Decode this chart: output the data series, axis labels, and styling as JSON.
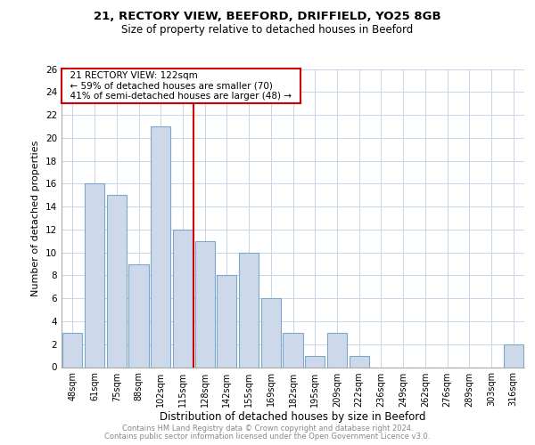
{
  "title": "21, RECTORY VIEW, BEEFORD, DRIFFIELD, YO25 8GB",
  "subtitle": "Size of property relative to detached houses in Beeford",
  "xlabel": "Distribution of detached houses by size in Beeford",
  "ylabel": "Number of detached properties",
  "categories": [
    "48sqm",
    "61sqm",
    "75sqm",
    "88sqm",
    "102sqm",
    "115sqm",
    "128sqm",
    "142sqm",
    "155sqm",
    "169sqm",
    "182sqm",
    "195sqm",
    "209sqm",
    "222sqm",
    "236sqm",
    "249sqm",
    "262sqm",
    "276sqm",
    "289sqm",
    "303sqm",
    "316sqm"
  ],
  "values": [
    3,
    16,
    15,
    9,
    21,
    12,
    11,
    8,
    10,
    6,
    3,
    1,
    3,
    1,
    0,
    0,
    0,
    0,
    0,
    0,
    2
  ],
  "bar_color": "#cdd9ea",
  "bar_edge_color": "#7ba7cc",
  "vline_x_index": 5.5,
  "vline_color": "#cc0000",
  "ylim": [
    0,
    26
  ],
  "yticks": [
    0,
    2,
    4,
    6,
    8,
    10,
    12,
    14,
    16,
    18,
    20,
    22,
    24,
    26
  ],
  "annotation_title": "21 RECTORY VIEW: 122sqm",
  "annotation_line1": "← 59% of detached houses are smaller (70)",
  "annotation_line2": "41% of semi-detached houses are larger (48) →",
  "annotation_box_color": "#ffffff",
  "annotation_box_edge": "#cc0000",
  "grid_color": "#c8d4e8",
  "footer1": "Contains HM Land Registry data © Crown copyright and database right 2024.",
  "footer2": "Contains public sector information licensed under the Open Government Licence v3.0."
}
